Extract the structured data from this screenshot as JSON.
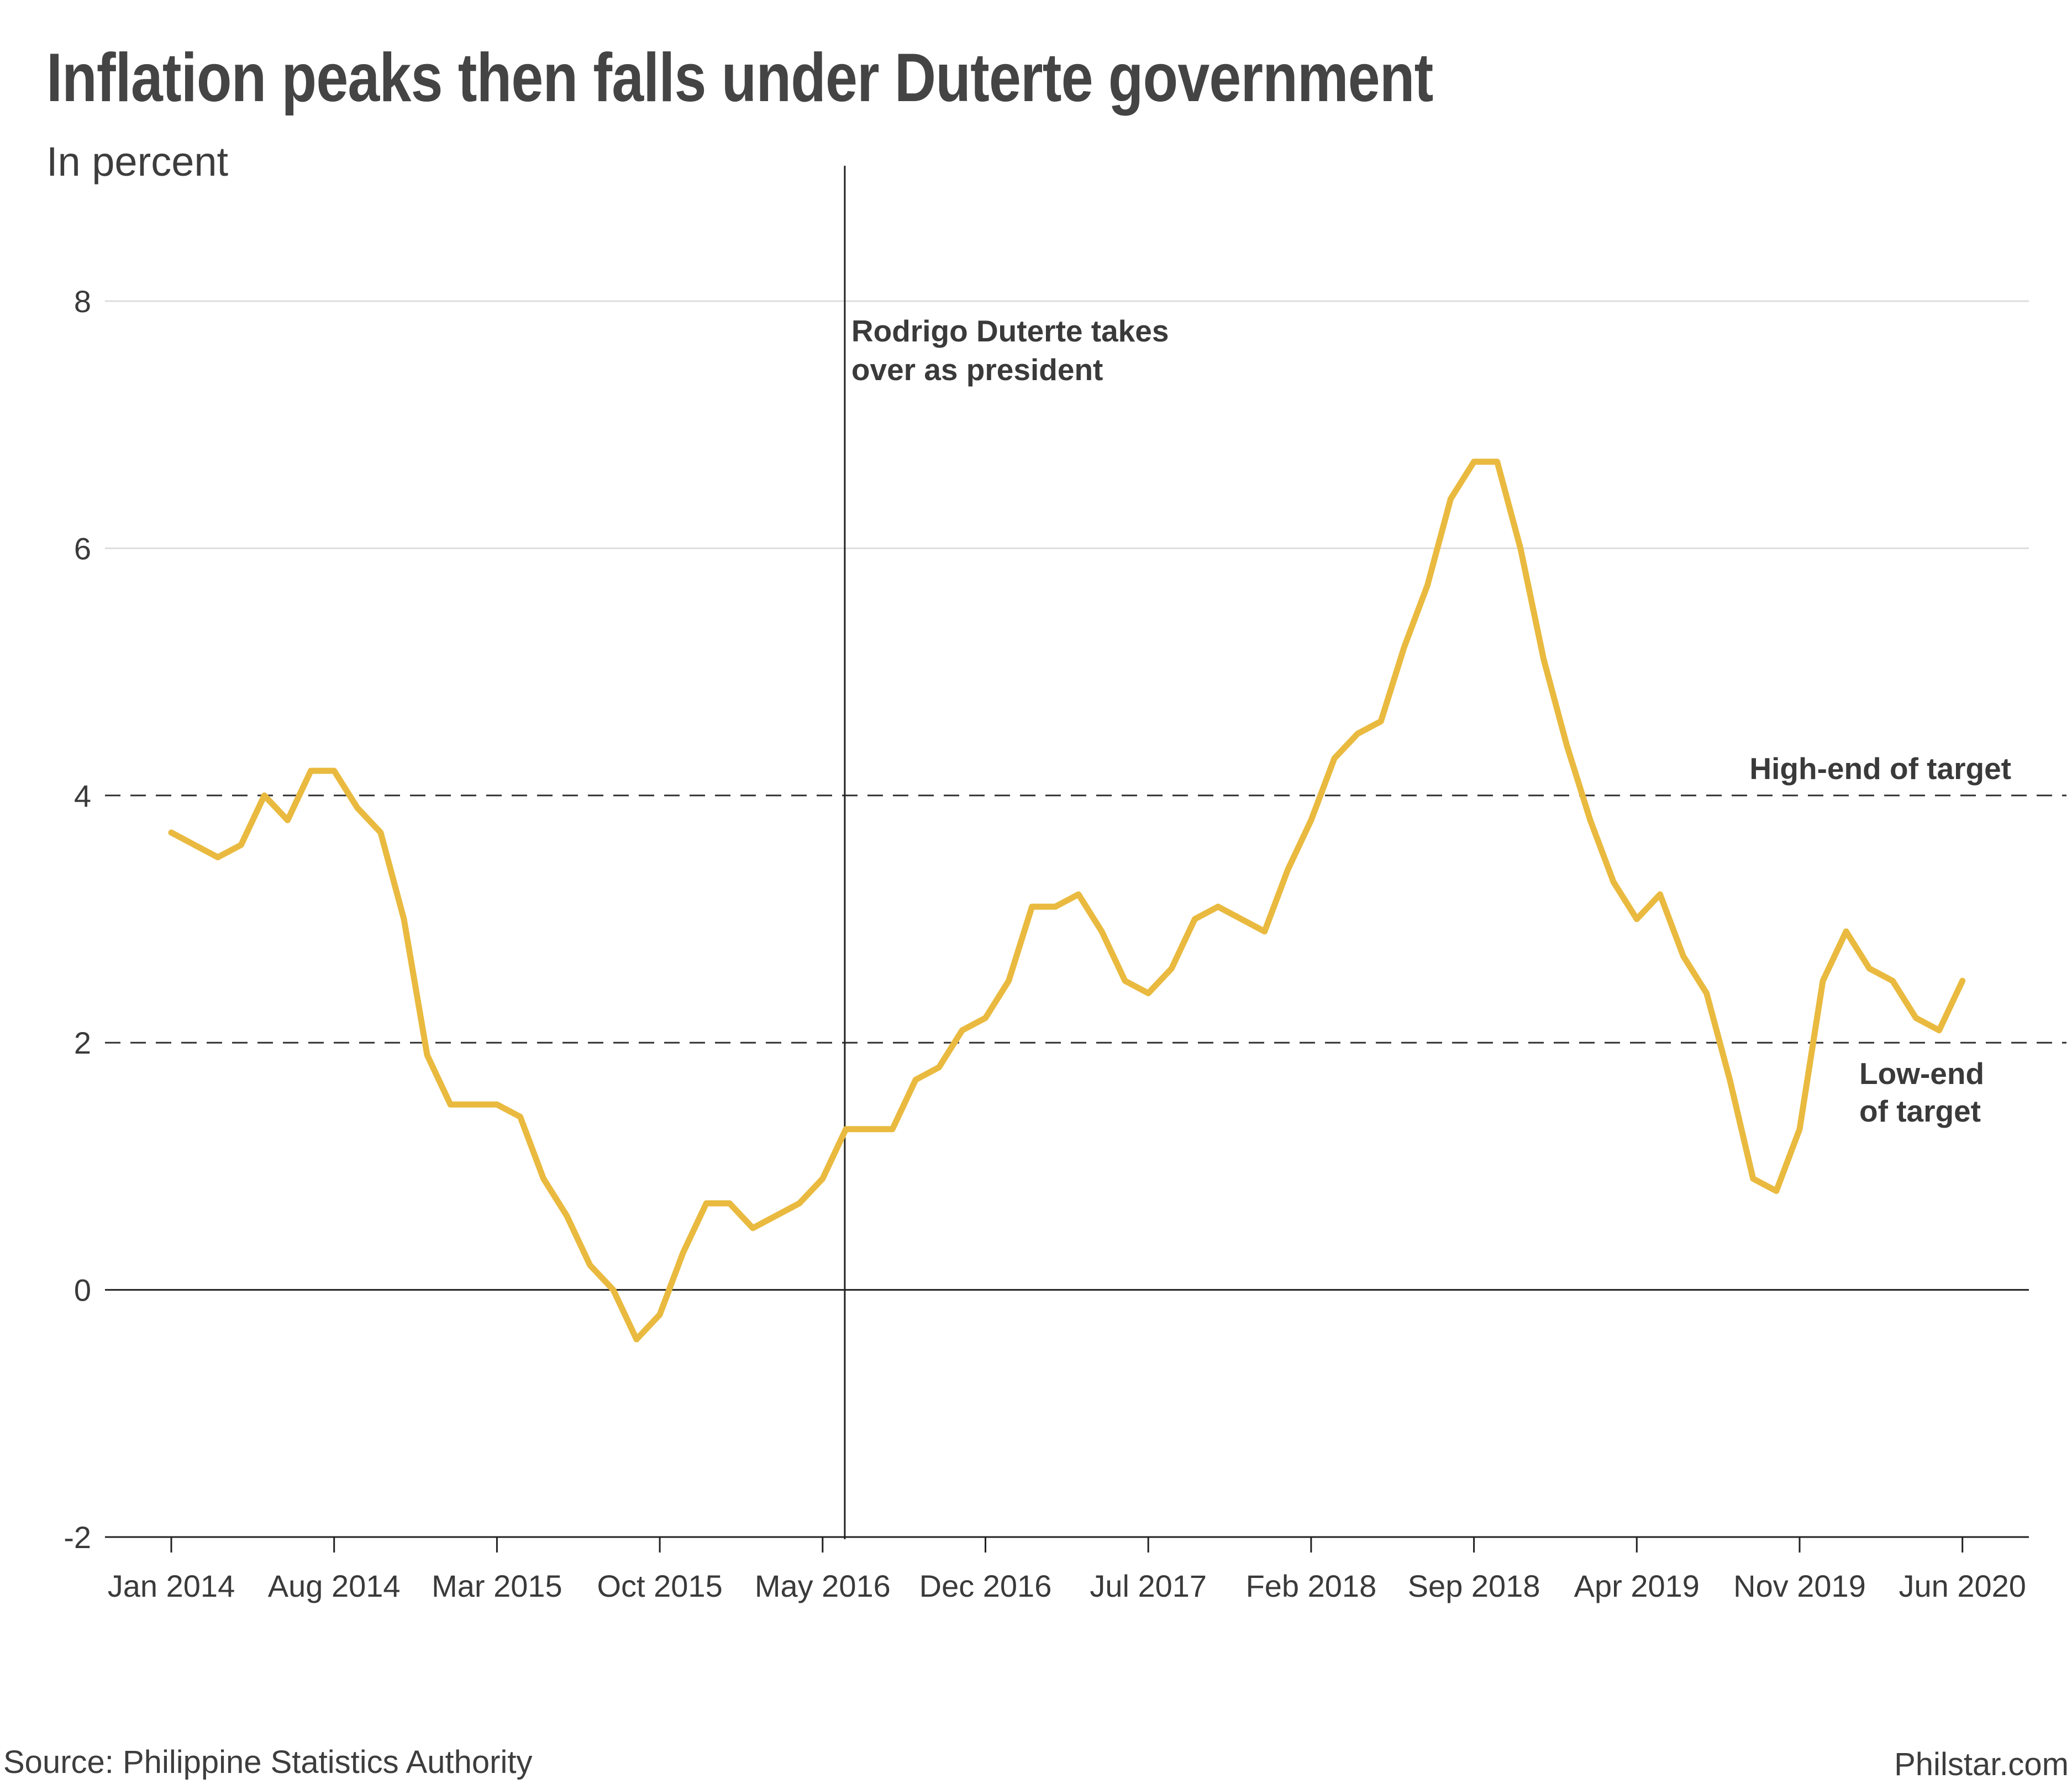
{
  "header": {
    "title": "Inflation peaks then falls under Duterte government",
    "subtitle": "In percent"
  },
  "footer": {
    "source": "Source: Philippine Statistics Authority",
    "credit": "Philstar.com"
  },
  "colors": {
    "line": "#E9BA3F",
    "grid": "#dddddd",
    "axis": "#222222",
    "text": "#3a3a3a"
  },
  "chart_data": {
    "type": "line",
    "title": "Inflation peaks then falls under Duterte government",
    "subtitle": "In percent",
    "xlabel": "",
    "ylabel": "",
    "ylim": [
      -2,
      8
    ],
    "y_ticks": [
      -2,
      0,
      2,
      4,
      6,
      8
    ],
    "x_tick_labels": [
      "Jan 2014",
      "Aug 2014",
      "Mar 2015",
      "Oct 2015",
      "May 2016",
      "Dec 2016",
      "Jul 2017",
      "Feb 2018",
      "Sep 2018",
      "Apr 2019",
      "Nov 2019",
      "Jun 2020"
    ],
    "x_tick_dates": [
      "2014-01",
      "2014-08",
      "2015-03",
      "2015-10",
      "2016-05",
      "2016-12",
      "2017-07",
      "2018-02",
      "2018-09",
      "2019-04",
      "2019-11",
      "2020-06"
    ],
    "grid": "horizontal",
    "series": [
      {
        "x": [
          "2014-01",
          "2014-02",
          "2014-03",
          "2014-04",
          "2014-05",
          "2014-06",
          "2014-07",
          "2014-08",
          "2014-09",
          "2014-10",
          "2014-11",
          "2014-12",
          "2015-01",
          "2015-02",
          "2015-03",
          "2015-04",
          "2015-05",
          "2015-06",
          "2015-07",
          "2015-08",
          "2015-09",
          "2015-10",
          "2015-11",
          "2015-12",
          "2016-01",
          "2016-02",
          "2016-03",
          "2016-04",
          "2016-05",
          "2016-06",
          "2016-07",
          "2016-08",
          "2016-09",
          "2016-10",
          "2016-11",
          "2016-12",
          "2017-01",
          "2017-02",
          "2017-03",
          "2017-04",
          "2017-05",
          "2017-06",
          "2017-07",
          "2017-08",
          "2017-09",
          "2017-10",
          "2017-11",
          "2017-12",
          "2018-01",
          "2018-02",
          "2018-03",
          "2018-04",
          "2018-05",
          "2018-06",
          "2018-07",
          "2018-08",
          "2018-09",
          "2018-10",
          "2018-11",
          "2018-12",
          "2019-01",
          "2019-02",
          "2019-03",
          "2019-04",
          "2019-05",
          "2019-06",
          "2019-07",
          "2019-08",
          "2019-09",
          "2019-10",
          "2019-11",
          "2019-12",
          "2020-01",
          "2020-02",
          "2020-03",
          "2020-04",
          "2020-05",
          "2020-06"
        ],
        "values": [
          3.7,
          3.6,
          3.5,
          3.6,
          4.0,
          3.8,
          4.2,
          4.2,
          3.9,
          3.7,
          3.0,
          1.9,
          1.5,
          1.5,
          1.5,
          1.4,
          0.9,
          0.6,
          0.2,
          0.0,
          -0.4,
          -0.2,
          0.3,
          0.7,
          0.7,
          0.5,
          0.6,
          0.7,
          0.9,
          1.3,
          1.3,
          1.3,
          1.7,
          1.8,
          2.1,
          2.2,
          2.5,
          3.1,
          3.1,
          3.2,
          2.9,
          2.5,
          2.4,
          2.6,
          3.0,
          3.1,
          3.0,
          2.9,
          3.4,
          3.8,
          4.3,
          4.5,
          4.6,
          5.2,
          5.7,
          6.4,
          6.7,
          6.7,
          6.0,
          5.1,
          4.4,
          3.8,
          3.3,
          3.0,
          3.2,
          2.7,
          2.4,
          1.7,
          0.9,
          0.8,
          1.3,
          2.5,
          2.9,
          2.6,
          2.5,
          2.2,
          2.1,
          2.5
        ]
      }
    ],
    "reference_lines": [
      {
        "y": 4,
        "style": "dashed",
        "label": "High-end of target"
      },
      {
        "y": 2,
        "style": "dashed",
        "label_lines": [
          "Low-end",
          "of target"
        ]
      }
    ],
    "event_marker": {
      "x": "2016-06",
      "label_lines": [
        "Rodrigo Duterte takes",
        "over as president"
      ]
    }
  }
}
